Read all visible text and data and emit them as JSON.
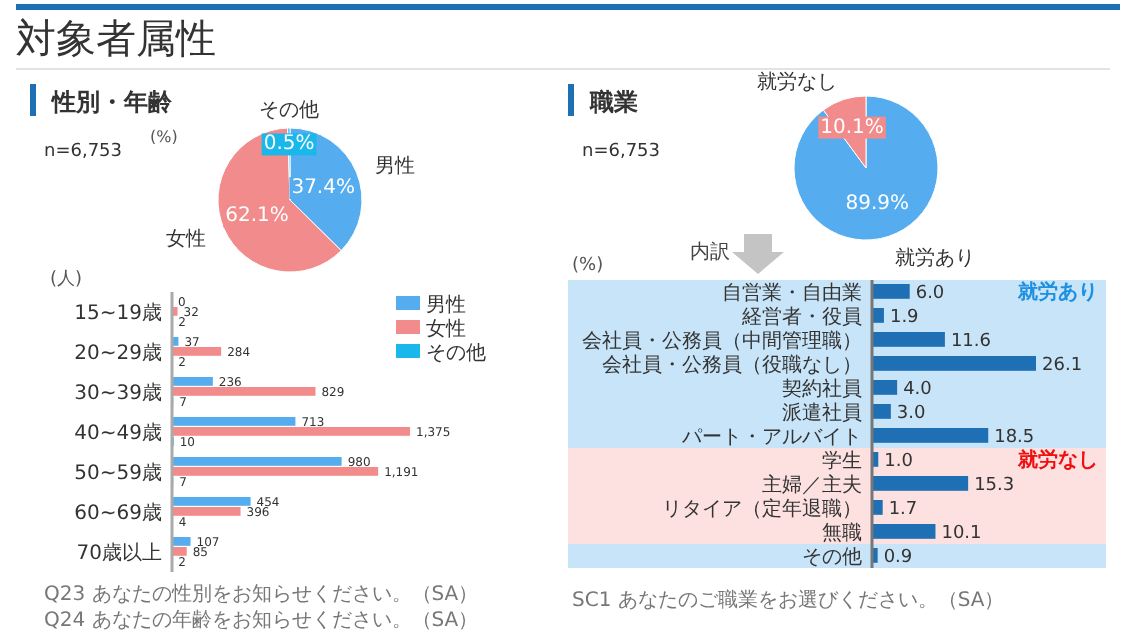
{
  "chart_data": [
    {
      "type": "pie",
      "title": "性別・年齢",
      "subtitle": "n=6,753",
      "annotations": [
        "対象者属性",
        "(%)"
      ],
      "categories": [
        "男性",
        "女性",
        "その他"
      ],
      "values": [
        37.4,
        62.1,
        0.5
      ],
      "value_labels": [
        "37.4%",
        "62.1%",
        "0.5%"
      ],
      "colors": [
        "#55acee",
        "#f28b8b",
        "#1ab7ea"
      ]
    },
    {
      "type": "bar",
      "orientation": "horizontal",
      "annotations": [
        "(人)",
        "Q23 あなたの性別をお知らせください。（SA）",
        "Q24 あなたの年齢をお知らせください。（SA）"
      ],
      "categories": [
        "15~19歳",
        "20~29歳",
        "30~39歳",
        "40~49歳",
        "50~59歳",
        "60~69歳",
        "70歳以上"
      ],
      "series": [
        {
          "name": "男性",
          "color": "#55acee",
          "values": [
            0,
            37,
            236,
            713,
            980,
            454,
            107
          ]
        },
        {
          "name": "女性",
          "color": "#f28b8b",
          "values": [
            32,
            284,
            829,
            1375,
            1191,
            396,
            85
          ],
          "value_labels": [
            "32",
            "284",
            "829",
            "1,375",
            "1,191",
            "396",
            "85"
          ]
        },
        {
          "name": "その他",
          "color": "#1ab7ea",
          "values": [
            2,
            2,
            7,
            10,
            7,
            4,
            2
          ]
        }
      ],
      "data_labels": true,
      "legend": "top right"
    },
    {
      "type": "pie",
      "title": "職業",
      "subtitle": "n=6,753",
      "categories": [
        "就労あり",
        "就労なし"
      ],
      "values": [
        89.9,
        10.1
      ],
      "value_labels": [
        "89.9%",
        "10.1%"
      ],
      "colors": [
        "#55acee",
        "#f28b8b"
      ]
    },
    {
      "type": "bar",
      "orientation": "horizontal",
      "annotations": [
        "内訳",
        "(%)",
        "SC1 あなたのご職業をお選びください。（SA）"
      ],
      "categories": [
        "自営業・自由業",
        "経営者・役員",
        "会社員・公務員（中間管理職）",
        "会社員・公務員（役職なし）",
        "契約社員",
        "派遣社員",
        "パート・アルバイト",
        "学生",
        "主婦／主夫",
        "リタイア（定年退職）",
        "無職",
        "その他"
      ],
      "values": [
        6.0,
        1.9,
        11.6,
        26.1,
        4.0,
        3.0,
        18.5,
        1.0,
        15.3,
        1.7,
        10.1,
        0.9
      ],
      "value_labels": [
        "6.0",
        "1.9",
        "11.6",
        "26.1",
        "4.0",
        "3.0",
        "18.5",
        "1.0",
        "15.3",
        "1.7",
        "10.1",
        "0.9"
      ],
      "color": "#1f6fb5",
      "bands": [
        {
          "axis": "y",
          "from": "自営業・自由業",
          "to": "パート・アルバイト",
          "label": "就労あり",
          "color": "#c8e4f8"
        },
        {
          "axis": "y",
          "from": "学生",
          "to": "無職",
          "label": "就労なし",
          "color": "#fde0e0"
        },
        {
          "axis": "y",
          "from": "その他",
          "to": "その他",
          "color": "#c8e4f8"
        }
      ]
    }
  ]
}
